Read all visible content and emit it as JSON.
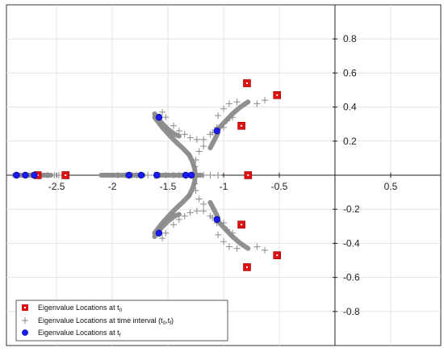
{
  "chart_data": {
    "type": "scatter",
    "title": "",
    "xlabel": "",
    "ylabel": "",
    "xlim": [
      -2.95,
      0.95
    ],
    "ylim": [
      -1.0,
      1.0
    ],
    "grid": true,
    "x_ticks": [
      -2.5,
      -2,
      -1.5,
      -1,
      -0.5,
      0.5
    ],
    "x_tick_labels": [
      "-2.5",
      "-2",
      "-1.5",
      "-1",
      "-0.5",
      "0.5"
    ],
    "y_ticks": [
      0.8,
      0.6,
      0.4,
      0.2,
      -0.2,
      -0.4,
      -0.6,
      -0.8
    ],
    "y_tick_labels": [
      "0.8",
      "0.6",
      "0.4",
      "0.2",
      "-0.2",
      "-0.4",
      "-0.6",
      "-0.8"
    ],
    "legend_position": "bottom-left",
    "series": [
      {
        "name": "Eigenvalue Locations at t",
        "subscript": "0",
        "marker": "square",
        "color": "#dd1111",
        "points": [
          [
            -0.79,
            0.54
          ],
          [
            -0.52,
            0.47
          ],
          [
            -0.84,
            0.29
          ],
          [
            -0.78,
            0.0
          ],
          [
            -2.42,
            0.0
          ],
          [
            -2.67,
            0.0
          ],
          [
            -0.84,
            -0.29
          ],
          [
            -0.79,
            -0.54
          ],
          [
            -0.52,
            -0.47
          ]
        ]
      },
      {
        "name": "Eigenvalue Locations at time interval (t",
        "subscript_1": "0",
        "middle": ",t",
        "subscript_2": "f",
        "suffix": ")",
        "marker": "plus",
        "color": "#8a8a8a",
        "points": [
          [
            -1.55,
            0.37
          ],
          [
            -1.52,
            0.34
          ],
          [
            -1.45,
            0.29
          ],
          [
            -1.4,
            0.26
          ],
          [
            -1.35,
            0.24
          ],
          [
            -1.3,
            0.22
          ],
          [
            -1.24,
            0.21
          ],
          [
            -1.18,
            0.21
          ],
          [
            -1.12,
            0.24
          ],
          [
            -1.06,
            0.28
          ],
          [
            -1.05,
            0.35
          ],
          [
            -1.0,
            0.39
          ],
          [
            -0.95,
            0.42
          ],
          [
            -0.88,
            0.43
          ],
          [
            -0.63,
            0.44
          ],
          [
            -0.7,
            0.42
          ],
          [
            -1.0,
            0.28
          ],
          [
            -1.1,
            0.25
          ],
          [
            -1.18,
            0.17
          ],
          [
            -1.22,
            0.14
          ],
          [
            -0.97,
            0.32
          ],
          [
            -0.92,
            0.34
          ],
          [
            -1.55,
            -0.37
          ],
          [
            -1.52,
            -0.34
          ],
          [
            -1.45,
            -0.29
          ],
          [
            -1.4,
            -0.26
          ],
          [
            -1.35,
            -0.24
          ],
          [
            -1.3,
            -0.22
          ],
          [
            -1.24,
            -0.21
          ],
          [
            -1.18,
            -0.21
          ],
          [
            -1.12,
            -0.24
          ],
          [
            -1.06,
            -0.28
          ],
          [
            -1.05,
            -0.35
          ],
          [
            -1.0,
            -0.39
          ],
          [
            -0.95,
            -0.42
          ],
          [
            -0.88,
            -0.43
          ],
          [
            -0.63,
            -0.44
          ],
          [
            -0.7,
            -0.42
          ],
          [
            -1.0,
            -0.28
          ],
          [
            -1.1,
            -0.25
          ],
          [
            -1.18,
            -0.17
          ],
          [
            -1.22,
            -0.14
          ],
          [
            -0.97,
            -0.32
          ],
          [
            -0.92,
            -0.34
          ],
          [
            -2.78,
            0.0
          ],
          [
            -2.72,
            0.0
          ],
          [
            -2.64,
            0.0
          ],
          [
            -2.58,
            0.0
          ],
          [
            -2.52,
            0.0
          ],
          [
            -2.48,
            0.0
          ],
          [
            -1.95,
            0.0
          ],
          [
            -1.88,
            0.0
          ],
          [
            -1.82,
            0.0
          ],
          [
            -1.78,
            0.0
          ],
          [
            -1.68,
            0.0
          ],
          [
            -1.62,
            0.0
          ],
          [
            -1.58,
            0.0
          ],
          [
            -1.52,
            0.0
          ],
          [
            -1.45,
            0.0
          ],
          [
            -1.4,
            0.0
          ],
          [
            -1.18,
            0.0
          ],
          [
            -1.12,
            0.0
          ],
          [
            -1.05,
            0.0
          ],
          [
            -1.26,
            0.05
          ],
          [
            -1.25,
            0.09
          ],
          [
            -1.26,
            -0.05
          ],
          [
            -1.25,
            -0.09
          ]
        ],
        "traces": [
          [
            [
              -1.62,
              0.34
            ],
            [
              -1.55,
              0.28
            ],
            [
              -1.48,
              0.23
            ],
            [
              -1.42,
              0.19
            ],
            [
              -1.37,
              0.16
            ],
            [
              -1.31,
              0.12
            ]
          ],
          [
            [
              -1.62,
              0.36
            ],
            [
              -1.56,
              0.31
            ],
            [
              -1.5,
              0.27
            ],
            [
              -1.44,
              0.24
            ],
            [
              -1.4,
              0.23
            ]
          ],
          [
            [
              -1.31,
              0.12
            ],
            [
              -1.28,
              0.08
            ],
            [
              -1.26,
              0.04
            ],
            [
              -1.255,
              0.0
            ],
            [
              -1.26,
              -0.04
            ],
            [
              -1.28,
              -0.08
            ],
            [
              -1.31,
              -0.12
            ]
          ],
          [
            [
              -1.62,
              -0.34
            ],
            [
              -1.55,
              -0.28
            ],
            [
              -1.48,
              -0.23
            ],
            [
              -1.42,
              -0.19
            ],
            [
              -1.37,
              -0.16
            ],
            [
              -1.31,
              -0.12
            ]
          ],
          [
            [
              -1.62,
              -0.36
            ],
            [
              -1.56,
              -0.31
            ],
            [
              -1.5,
              -0.27
            ],
            [
              -1.44,
              -0.24
            ],
            [
              -1.4,
              -0.23
            ]
          ],
          [
            [
              -1.05,
              0.25
            ],
            [
              -1.08,
              0.21
            ],
            [
              -1.12,
              0.16
            ]
          ],
          [
            [
              -1.05,
              0.27
            ],
            [
              -0.98,
              0.32
            ],
            [
              -0.92,
              0.36
            ],
            [
              -0.85,
              0.4
            ],
            [
              -0.78,
              0.43
            ]
          ],
          [
            [
              -1.05,
              -0.25
            ],
            [
              -1.08,
              -0.21
            ],
            [
              -1.12,
              -0.16
            ]
          ],
          [
            [
              -1.05,
              -0.27
            ],
            [
              -0.98,
              -0.32
            ],
            [
              -0.92,
              -0.36
            ],
            [
              -0.85,
              -0.4
            ],
            [
              -0.78,
              -0.43
            ]
          ],
          [
            [
              -2.88,
              0.0
            ],
            [
              -2.55,
              0.0
            ]
          ],
          [
            [
              -2.1,
              0.0
            ],
            [
              -1.72,
              0.0
            ]
          ],
          [
            [
              -1.6,
              0.0
            ],
            [
              -1.2,
              0.0
            ]
          ]
        ]
      },
      {
        "name": "Eigenvalue Locations at t",
        "subscript": "f",
        "marker": "circle",
        "color": "#1a1aff",
        "points": [
          [
            -1.58,
            0.34
          ],
          [
            -1.06,
            0.26
          ],
          [
            -2.86,
            0.0
          ],
          [
            -2.78,
            0.0
          ],
          [
            -2.7,
            0.0
          ],
          [
            -1.85,
            0.0
          ],
          [
            -1.74,
            0.0
          ],
          [
            -1.6,
            0.0
          ],
          [
            -1.34,
            0.0
          ],
          [
            -1.29,
            0.0
          ],
          [
            -1.58,
            -0.34
          ],
          [
            -1.06,
            -0.26
          ]
        ]
      }
    ]
  }
}
